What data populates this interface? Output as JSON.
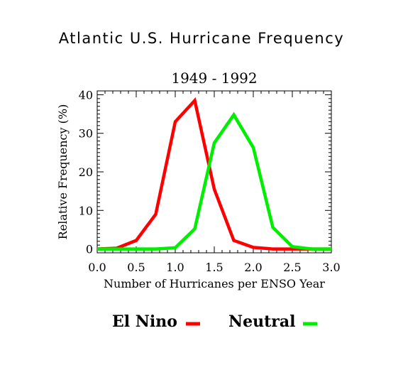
{
  "chart_data": {
    "type": "line",
    "title": "Atlantic U.S. Hurricane Frequency",
    "subtitle": "1949 - 1992",
    "xlabel": "Number of Hurricanes per ENSO Year",
    "ylabel": "Relative Frequency (%)",
    "xlim": [
      0.0,
      3.0
    ],
    "ylim": [
      -1,
      41
    ],
    "x_ticks": [
      "0.0",
      "0.5",
      "1.0",
      "1.5",
      "2.0",
      "2.5",
      "3.0"
    ],
    "y_ticks": [
      "0",
      "10",
      "20",
      "30",
      "40"
    ],
    "grid": false,
    "legend_position": "bottom",
    "series": [
      {
        "name": "El Nino",
        "color": "#ff0000",
        "x": [
          0.0,
          0.25,
          0.5,
          0.75,
          1.0,
          1.25,
          1.5,
          1.75,
          2.0,
          2.25,
          2.5,
          2.75,
          3.0
        ],
        "y": [
          0.0,
          0.2,
          2.2,
          9.0,
          33.0,
          38.5,
          15.5,
          2.2,
          0.4,
          0.0,
          0.0,
          0.0,
          0.0
        ]
      },
      {
        "name": "Neutral",
        "color": "#00ee00",
        "x": [
          0.0,
          0.25,
          0.5,
          0.75,
          1.0,
          1.25,
          1.5,
          1.75,
          2.0,
          2.25,
          2.5,
          2.75,
          3.0
        ],
        "y": [
          0.0,
          0.0,
          0.0,
          0.0,
          0.3,
          5.2,
          27.5,
          34.8,
          26.3,
          5.6,
          0.6,
          0.0,
          0.0
        ]
      }
    ]
  }
}
